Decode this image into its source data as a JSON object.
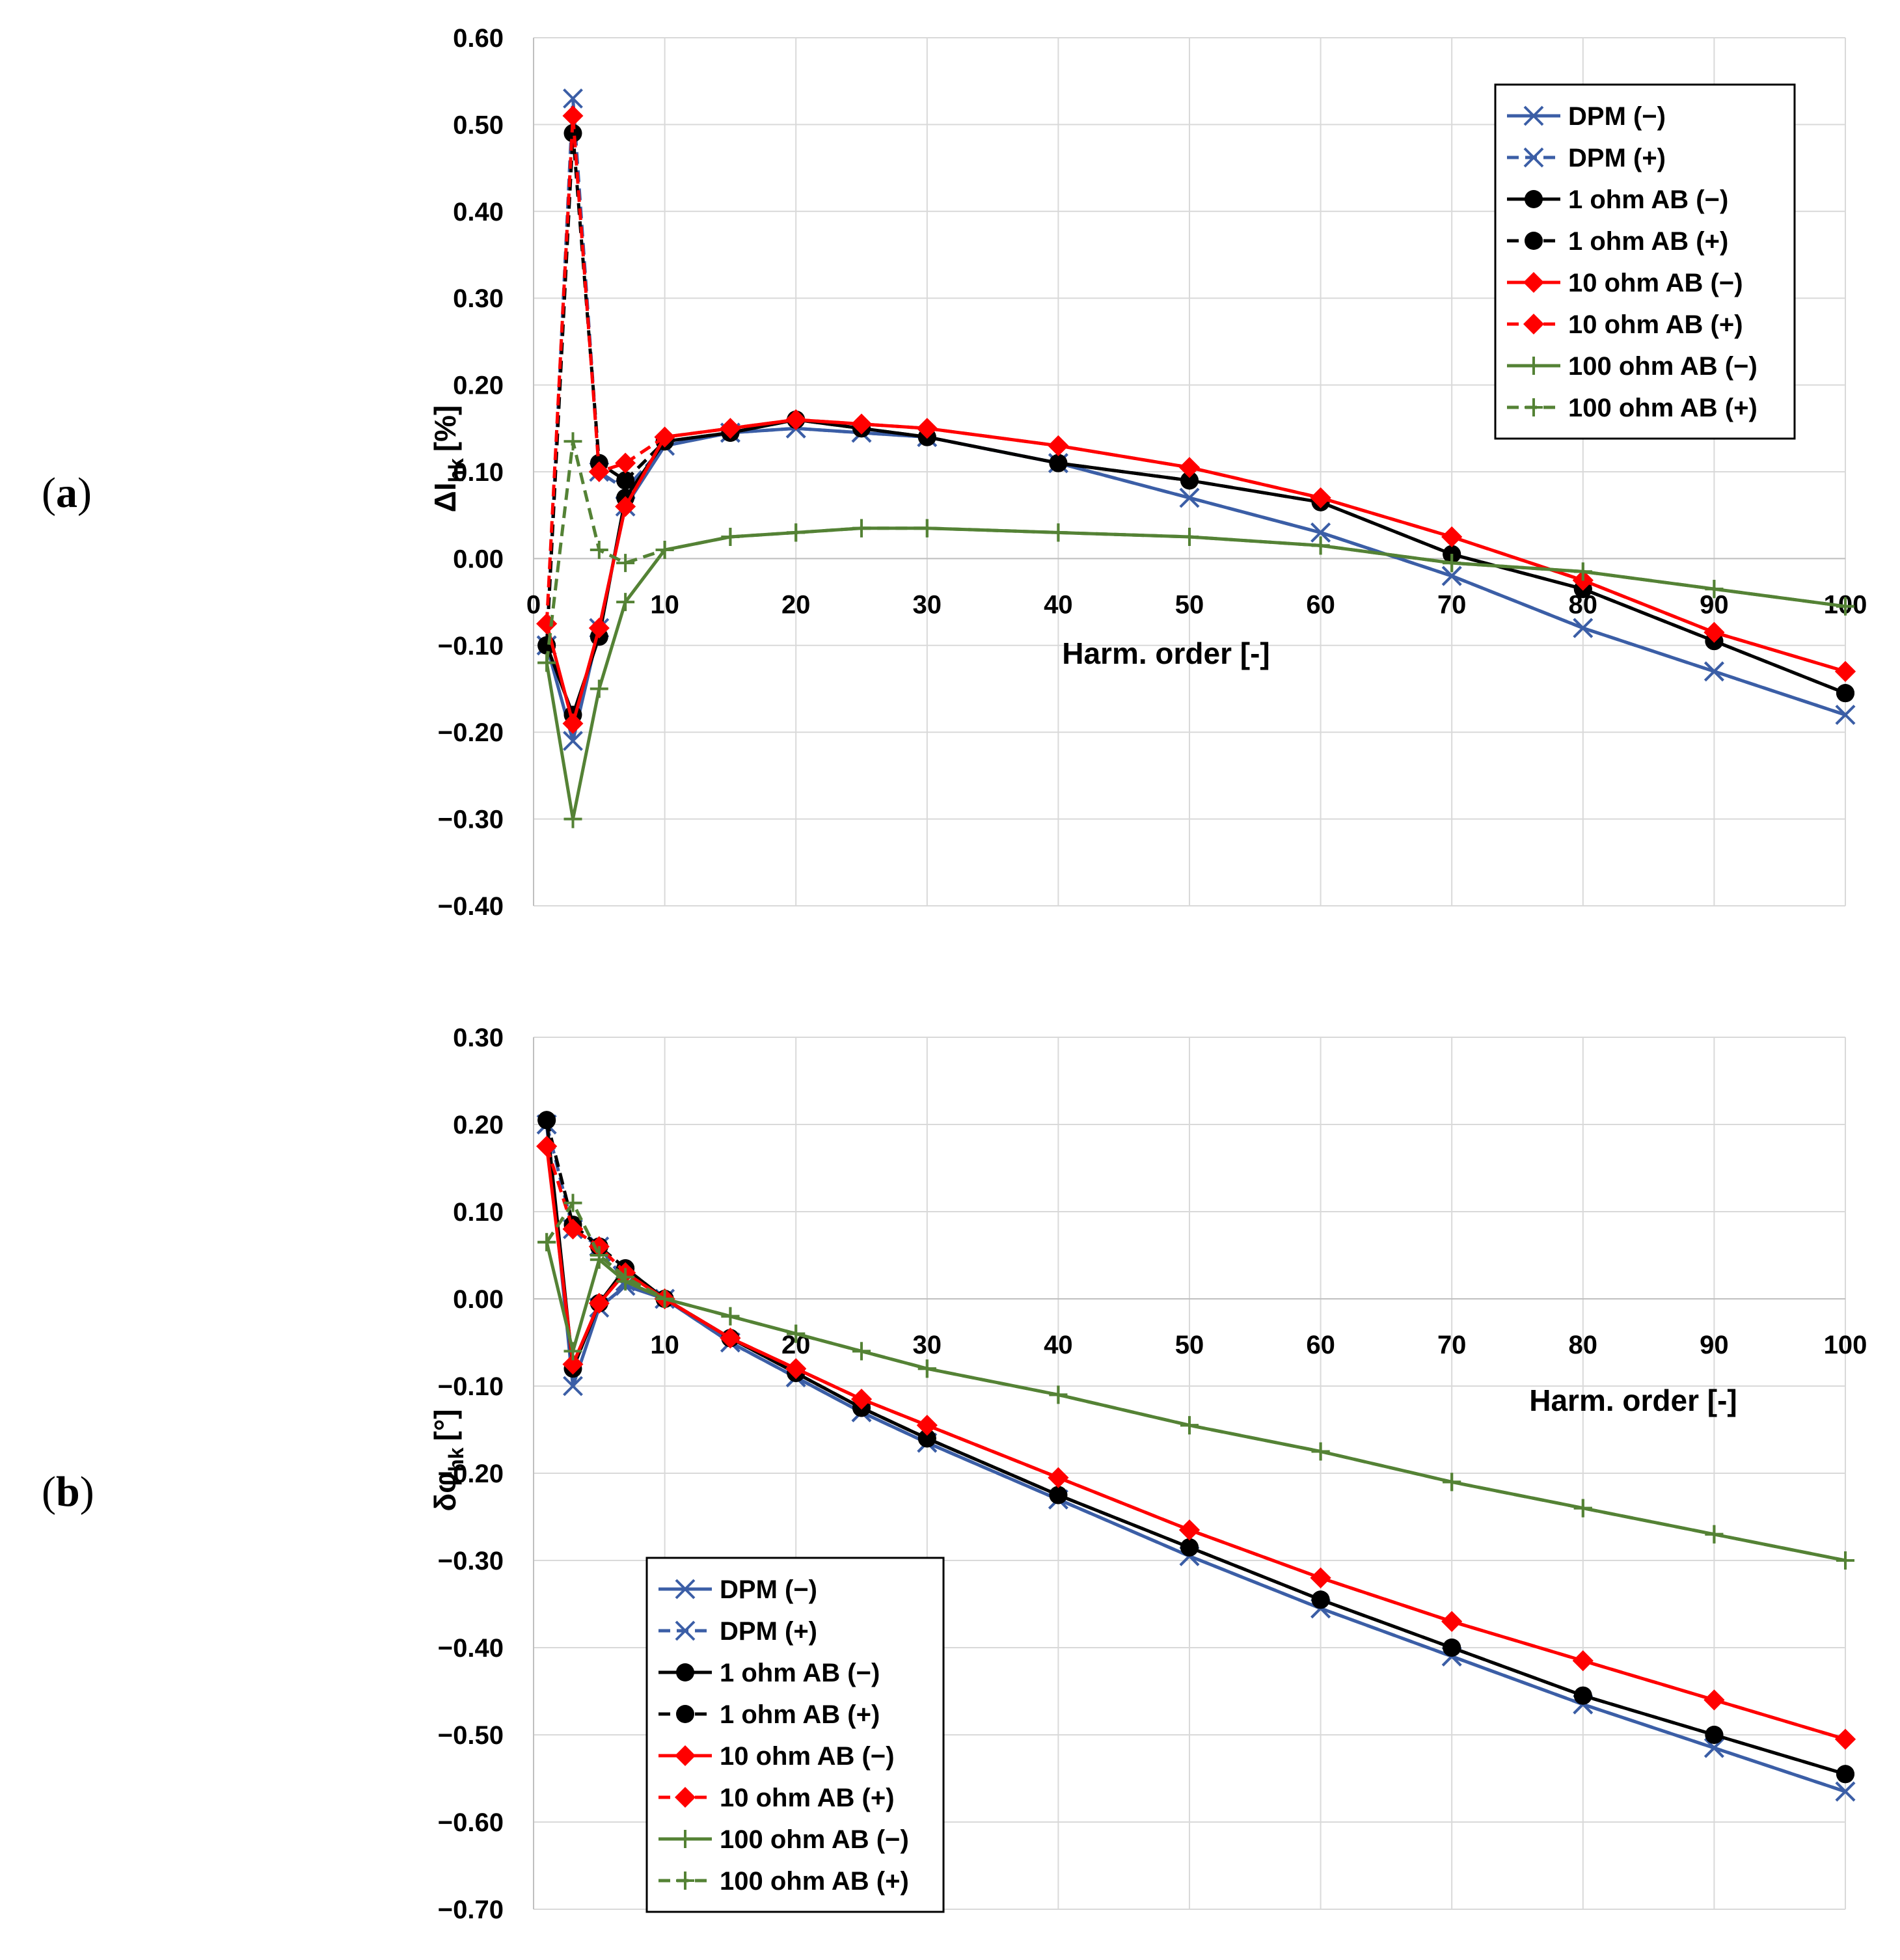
{
  "labels": {
    "a": "a",
    "b": "b"
  },
  "chart_data": [
    {
      "type": "line",
      "panel": "a",
      "xlabel": "Harm. order [-]",
      "ylabel_main": "ΔI",
      "ylabel_sub": "hk",
      "ylabel_unit": "[%]",
      "xlim": [
        0,
        100
      ],
      "ylim": [
        -0.4,
        0.6
      ],
      "xticks": [
        0,
        10,
        20,
        30,
        40,
        50,
        60,
        70,
        80,
        90,
        100
      ],
      "yticks": [
        -0.4,
        -0.3,
        -0.2,
        -0.1,
        0.0,
        0.1,
        0.2,
        0.3,
        0.4,
        0.5,
        0.6
      ],
      "legend_position": "top-right",
      "grid": true,
      "series": [
        {
          "name": "DPM (−)",
          "color": "#3b5ea6",
          "dashed": false,
          "marker": "x",
          "x": [
            1,
            3,
            5,
            7,
            10,
            15,
            20,
            25,
            30,
            40,
            50,
            60,
            70,
            80,
            90,
            100
          ],
          "y": [
            -0.1,
            -0.21,
            -0.08,
            0.06,
            0.13,
            0.145,
            0.15,
            0.145,
            0.14,
            0.11,
            0.07,
            0.03,
            -0.02,
            -0.08,
            -0.13,
            -0.18
          ]
        },
        {
          "name": "DPM (+)",
          "color": "#3b5ea6",
          "dashed": true,
          "marker": "x",
          "x": [
            1,
            3,
            5,
            7,
            10,
            15,
            20,
            25,
            30,
            40,
            50,
            60,
            70,
            80,
            90,
            100
          ],
          "y": [
            -0.1,
            0.53,
            0.1,
            0.08,
            0.13,
            0.145,
            0.15,
            0.145,
            0.14,
            0.11,
            0.07,
            0.03,
            -0.02,
            -0.08,
            -0.13,
            -0.18
          ]
        },
        {
          "name": "1 ohm AB (−)",
          "color": "#000000",
          "dashed": false,
          "marker": "circle",
          "x": [
            1,
            3,
            5,
            7,
            10,
            15,
            20,
            25,
            30,
            40,
            50,
            60,
            70,
            80,
            90,
            100
          ],
          "y": [
            -0.1,
            -0.18,
            -0.09,
            0.07,
            0.135,
            0.145,
            0.16,
            0.15,
            0.14,
            0.11,
            0.09,
            0.065,
            0.005,
            -0.035,
            -0.095,
            -0.155
          ]
        },
        {
          "name": "1 ohm AB (+)",
          "color": "#000000",
          "dashed": true,
          "marker": "circle",
          "x": [
            1,
            3,
            5,
            7,
            10,
            15,
            20,
            25,
            30,
            40,
            50,
            60,
            70,
            80,
            90,
            100
          ],
          "y": [
            -0.1,
            0.49,
            0.11,
            0.09,
            0.135,
            0.145,
            0.16,
            0.15,
            0.14,
            0.11,
            0.09,
            0.065,
            0.005,
            -0.035,
            -0.095,
            -0.155
          ]
        },
        {
          "name": "10 ohm AB (−)",
          "color": "#ff0000",
          "dashed": false,
          "marker": "diamond",
          "x": [
            1,
            3,
            5,
            7,
            10,
            15,
            20,
            25,
            30,
            40,
            50,
            60,
            70,
            80,
            90,
            100
          ],
          "y": [
            -0.075,
            -0.19,
            -0.08,
            0.06,
            0.14,
            0.15,
            0.16,
            0.155,
            0.15,
            0.13,
            0.105,
            0.07,
            0.025,
            -0.025,
            -0.085,
            -0.13
          ]
        },
        {
          "name": "10 ohm AB (+)",
          "color": "#ff0000",
          "dashed": true,
          "marker": "diamond",
          "x": [
            1,
            3,
            5,
            7,
            10,
            15,
            20,
            25,
            30,
            40,
            50,
            60,
            70,
            80,
            90,
            100
          ],
          "y": [
            -0.075,
            0.51,
            0.1,
            0.11,
            0.14,
            0.15,
            0.16,
            0.155,
            0.15,
            0.13,
            0.105,
            0.07,
            0.025,
            -0.025,
            -0.085,
            -0.13
          ]
        },
        {
          "name": "100 ohm AB (−)",
          "color": "#548235",
          "dashed": false,
          "marker": "plus",
          "x": [
            1,
            3,
            5,
            7,
            10,
            15,
            20,
            25,
            30,
            40,
            50,
            60,
            70,
            80,
            90,
            100
          ],
          "y": [
            -0.12,
            -0.3,
            -0.15,
            -0.05,
            0.01,
            0.025,
            0.03,
            0.035,
            0.035,
            0.03,
            0.025,
            0.015,
            -0.005,
            -0.015,
            -0.035,
            -0.055
          ]
        },
        {
          "name": "100 ohm AB (+)",
          "color": "#548235",
          "dashed": true,
          "marker": "plus",
          "x": [
            1,
            3,
            5,
            7,
            10,
            15,
            20,
            25,
            30,
            40,
            50,
            60,
            70,
            80,
            90,
            100
          ],
          "y": [
            -0.12,
            0.135,
            0.01,
            -0.005,
            0.01,
            0.025,
            0.03,
            0.035,
            0.035,
            0.03,
            0.025,
            0.015,
            -0.005,
            -0.015,
            -0.035,
            -0.055
          ]
        }
      ]
    },
    {
      "type": "line",
      "panel": "b",
      "xlabel": "Harm. order [-]",
      "ylabel_main": "δφ",
      "ylabel_sub": "hk",
      "ylabel_unit": "[°]",
      "xlim": [
        0,
        100
      ],
      "ylim": [
        -0.7,
        0.3
      ],
      "xticks": [
        0,
        10,
        20,
        30,
        40,
        50,
        60,
        70,
        80,
        90,
        100
      ],
      "xtick_labels": [
        "",
        "10",
        "20",
        "30",
        "40",
        "50",
        "60",
        "70",
        "80",
        "90",
        "100"
      ],
      "yticks": [
        -0.7,
        -0.6,
        -0.5,
        -0.4,
        -0.3,
        -0.2,
        -0.1,
        0.0,
        0.1,
        0.2,
        0.3
      ],
      "legend_position": "bottom-left",
      "grid": true,
      "series": [
        {
          "name": "DPM (−)",
          "color": "#3b5ea6",
          "dashed": false,
          "marker": "x",
          "x": [
            1,
            3,
            5,
            7,
            10,
            15,
            20,
            25,
            30,
            40,
            50,
            60,
            70,
            80,
            90,
            100
          ],
          "y": [
            0.2,
            -0.1,
            -0.01,
            0.015,
            0.0,
            -0.05,
            -0.09,
            -0.13,
            -0.165,
            -0.23,
            -0.295,
            -0.355,
            -0.41,
            -0.465,
            -0.515,
            -0.565
          ]
        },
        {
          "name": "DPM (+)",
          "color": "#3b5ea6",
          "dashed": true,
          "marker": "x",
          "x": [
            1,
            3,
            5,
            7,
            10,
            15,
            20,
            25,
            30,
            40,
            50,
            60,
            70,
            80,
            90,
            100
          ],
          "y": [
            0.2,
            0.08,
            0.06,
            0.02,
            0.0,
            -0.05,
            -0.09,
            -0.13,
            -0.165,
            -0.23,
            -0.295,
            -0.355,
            -0.41,
            -0.465,
            -0.515,
            -0.565
          ]
        },
        {
          "name": "1 ohm AB (−)",
          "color": "#000000",
          "dashed": false,
          "marker": "circle",
          "x": [
            1,
            3,
            5,
            7,
            10,
            15,
            20,
            25,
            30,
            40,
            50,
            60,
            70,
            80,
            90,
            100
          ],
          "y": [
            0.205,
            -0.08,
            -0.005,
            0.035,
            0.0,
            -0.045,
            -0.085,
            -0.125,
            -0.16,
            -0.225,
            -0.285,
            -0.345,
            -0.4,
            -0.455,
            -0.5,
            -0.545
          ]
        },
        {
          "name": "1 ohm AB (+)",
          "color": "#000000",
          "dashed": true,
          "marker": "circle",
          "x": [
            1,
            3,
            5,
            7,
            10,
            15,
            20,
            25,
            30,
            40,
            50,
            60,
            70,
            80,
            90,
            100
          ],
          "y": [
            0.205,
            0.085,
            0.06,
            0.035,
            0.0,
            -0.045,
            -0.085,
            -0.125,
            -0.16,
            -0.225,
            -0.285,
            -0.345,
            -0.4,
            -0.455,
            -0.5,
            -0.545
          ]
        },
        {
          "name": "10 ohm AB (−)",
          "color": "#ff0000",
          "dashed": false,
          "marker": "diamond",
          "x": [
            1,
            3,
            5,
            7,
            10,
            15,
            20,
            25,
            30,
            40,
            50,
            60,
            70,
            80,
            90,
            100
          ],
          "y": [
            0.175,
            -0.075,
            -0.005,
            0.03,
            0.0,
            -0.045,
            -0.08,
            -0.115,
            -0.145,
            -0.205,
            -0.265,
            -0.32,
            -0.37,
            -0.415,
            -0.46,
            -0.505
          ]
        },
        {
          "name": "10 ohm AB (+)",
          "color": "#ff0000",
          "dashed": true,
          "marker": "diamond",
          "x": [
            1,
            3,
            5,
            7,
            10,
            15,
            20,
            25,
            30,
            40,
            50,
            60,
            70,
            80,
            90,
            100
          ],
          "y": [
            0.175,
            0.08,
            0.06,
            0.03,
            0.0,
            -0.045,
            -0.08,
            -0.115,
            -0.145,
            -0.205,
            -0.265,
            -0.32,
            -0.37,
            -0.415,
            -0.46,
            -0.505
          ]
        },
        {
          "name": "100 ohm AB (−)",
          "color": "#548235",
          "dashed": false,
          "marker": "plus",
          "x": [
            1,
            3,
            5,
            7,
            10,
            15,
            20,
            25,
            30,
            40,
            50,
            60,
            70,
            80,
            90,
            100
          ],
          "y": [
            0.065,
            -0.06,
            0.045,
            0.02,
            0.0,
            -0.02,
            -0.04,
            -0.06,
            -0.08,
            -0.11,
            -0.145,
            -0.175,
            -0.21,
            -0.24,
            -0.27,
            -0.3
          ]
        },
        {
          "name": "100 ohm AB (+)",
          "color": "#548235",
          "dashed": true,
          "marker": "plus",
          "x": [
            1,
            3,
            5,
            7,
            10,
            15,
            20,
            25,
            30,
            40,
            50,
            60,
            70,
            80,
            90,
            100
          ],
          "y": [
            0.065,
            0.11,
            0.05,
            0.025,
            0.0,
            -0.02,
            -0.04,
            -0.06,
            -0.08,
            -0.11,
            -0.145,
            -0.175,
            -0.21,
            -0.24,
            -0.27,
            -0.3
          ]
        }
      ]
    }
  ]
}
